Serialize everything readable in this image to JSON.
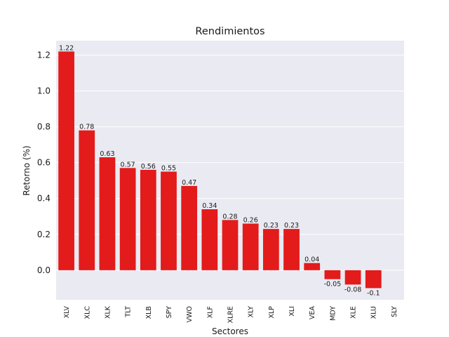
{
  "chart_data": {
    "type": "bar",
    "title": "Rendimientos",
    "xlabel": "Sectores",
    "ylabel": "Retorno (%)",
    "categories": [
      "XLV",
      "XLC",
      "XLK",
      "TLT",
      "XLB",
      "SPY",
      "VWO",
      "XLF",
      "XLRE",
      "XLY",
      "XLP",
      "XLI",
      "VEA",
      "MDY",
      "XLE",
      "XLU",
      "SLY"
    ],
    "values": [
      1.22,
      0.78,
      0.63,
      0.57,
      0.56,
      0.55,
      0.47,
      0.34,
      0.28,
      0.26,
      0.23,
      0.23,
      0.04,
      -0.05,
      -0.08,
      -0.1,
      null
    ],
    "data_labels": [
      "1.22",
      "0.78",
      "0.63",
      "0.57",
      "0.56",
      "0.55",
      "0.47",
      "0.34",
      "0.28",
      "0.26",
      "0.23",
      "0.23",
      "0.04",
      "-0.05",
      "-0.08",
      "-0.1",
      ""
    ],
    "ylim": [
      -0.165,
      1.28
    ],
    "yticks": [
      0.0,
      0.2,
      0.4,
      0.6,
      0.8,
      1.0,
      1.2
    ],
    "ytick_labels": [
      "0.0",
      "0.2",
      "0.4",
      "0.6",
      "0.8",
      "1.0",
      "1.2"
    ],
    "grid": true,
    "bar_color": "#e31b1b",
    "background_color": "#eaeaf2"
  }
}
